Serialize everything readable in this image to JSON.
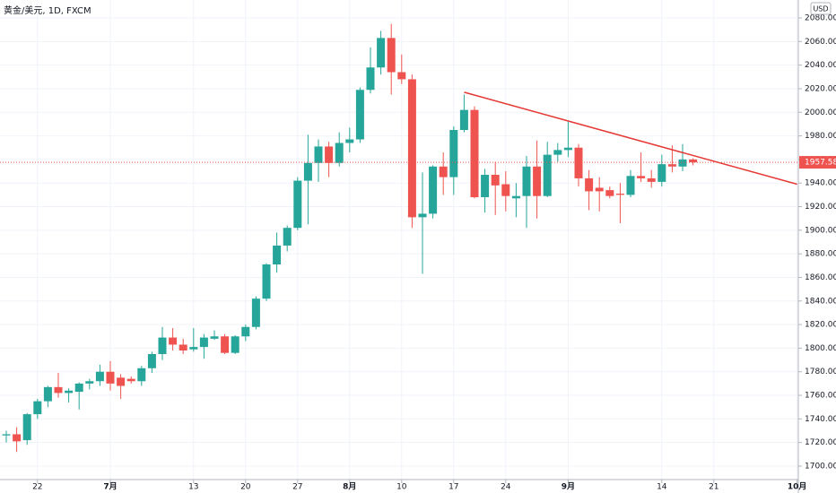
{
  "chart_data": {
    "type": "candlestick",
    "title": "黄金/美元, 1D, FXCM",
    "currency": "USD",
    "categories": [
      null,
      null,
      null,
      "22",
      null,
      null,
      null,
      null,
      null,
      null,
      "7月",
      null,
      null,
      null,
      null,
      null,
      null,
      null,
      "13",
      null,
      null,
      null,
      null,
      "20",
      null,
      null,
      null,
      null,
      "27",
      null,
      null,
      null,
      null,
      "8月",
      null,
      null,
      null,
      null,
      "10",
      null,
      null,
      null,
      null,
      "17",
      null,
      null,
      null,
      null,
      "24",
      null,
      null,
      null,
      null,
      null,
      "9月",
      null,
      null,
      null,
      null,
      null,
      null,
      null,
      null,
      "14",
      null,
      null,
      null,
      null,
      "21",
      null,
      null,
      null,
      null,
      null,
      null,
      null,
      "10月"
    ],
    "open": [
      1726,
      1727,
      1722,
      1744,
      1755,
      1767,
      1762,
      1763,
      1770,
      1772,
      1780,
      1775,
      1774,
      1772,
      1783,
      1795,
      1809,
      1803,
      1799,
      1801,
      1808,
      1810,
      1796,
      1810,
      1818,
      1842,
      1871,
      1887,
      1902,
      1942,
      1957,
      1971,
      1957,
      1974,
      1977,
      2019,
      2038,
      2063,
      2034,
      2028,
      1911,
      1914,
      1954,
      1945,
      1985,
      2002,
      1928,
      1947,
      1939,
      1927,
      1929,
      1954,
      1929,
      1964,
      1968,
      1970,
      1944,
      1936,
      1934,
      1931,
      1930,
      1946,
      1944,
      1941,
      1956,
      1954,
      1960,
      null,
      null,
      null,
      null,
      null,
      null,
      null,
      null,
      null,
      null
    ],
    "high": [
      1730,
      1733,
      1745,
      1757,
      1768,
      1779,
      1766,
      1771,
      1774,
      1786,
      1789,
      1778,
      1776,
      1785,
      1797,
      1818,
      1817,
      1808,
      1817,
      1812,
      1815,
      1812,
      1811,
      1820,
      1844,
      1872,
      1898,
      1904,
      1945,
      1981,
      1977,
      1975,
      1983,
      1987,
      2021,
      2055,
      2069,
      2075,
      2049,
      2032,
      1949,
      1955,
      1966,
      1988,
      2015,
      2005,
      1952,
      1958,
      1950,
      1940,
      1963,
      1976,
      1975,
      1974,
      1992,
      1973,
      1951,
      1945,
      1937,
      1940,
      1951,
      1966,
      1951,
      1964,
      1972,
      1973,
      1961,
      null,
      null,
      null,
      null,
      null,
      null,
      null,
      null,
      null,
      null
    ],
    "low": [
      1720,
      1712,
      1718,
      1740,
      1750,
      1758,
      1754,
      1748,
      1765,
      1768,
      1764,
      1757,
      1770,
      1768,
      1779,
      1790,
      1798,
      1795,
      1797,
      1791,
      1807,
      1795,
      1795,
      1806,
      1816,
      1840,
      1864,
      1882,
      1900,
      1905,
      1941,
      1945,
      1954,
      1966,
      1974,
      2016,
      2032,
      2015,
      2024,
      1902,
      1863,
      1910,
      1930,
      1930,
      1983,
      1927,
      1915,
      1913,
      1916,
      1911,
      1902,
      1910,
      1928,
      1958,
      1962,
      1937,
      1917,
      1916,
      1927,
      1906,
      1928,
      1941,
      1936,
      1937,
      1949,
      1950,
      1955,
      null,
      null,
      null,
      null,
      null,
      null,
      null,
      null,
      null,
      null
    ],
    "close": [
      1727,
      1721,
      1744,
      1755,
      1767,
      1762,
      1764,
      1770,
      1772,
      1780,
      1770,
      1768,
      1772,
      1783,
      1795,
      1809,
      1803,
      1798,
      1801,
      1809,
      1810,
      1796,
      1810,
      1818,
      1842,
      1871,
      1887,
      1902,
      1942,
      1957,
      1971,
      1957,
      1974,
      1977,
      2019,
      2038,
      2063,
      2034,
      2028,
      1911,
      1914,
      1954,
      1945,
      1985,
      2002,
      1928,
      1947,
      1938,
      1929,
      1929,
      1954,
      1929,
      1964,
      1968,
      1970,
      1944,
      1933,
      1933,
      1929,
      1930,
      1946,
      1944,
      1941,
      1956,
      1954,
      1960,
      1957.58,
      null,
      null,
      null,
      null,
      null,
      null,
      null,
      null,
      null,
      null
    ],
    "up_color": "#26a69a",
    "down_color": "#ef5350",
    "last_price": 1957.58,
    "trendline": {
      "color": "#e53935",
      "start": [
        44,
        2017
      ],
      "end": [
        76,
        1939
      ]
    },
    "ylim": [
      1688.6,
      2095.2
    ],
    "yticks": [
      {
        "value": 1700,
        "label": "1700.00"
      },
      {
        "value": 1720,
        "label": "1720.00"
      },
      {
        "value": 1740,
        "label": "1740.00"
      },
      {
        "value": 1760,
        "label": "1760.00"
      },
      {
        "value": 1780,
        "label": "1780.00"
      },
      {
        "value": 1800,
        "label": "1800.00"
      },
      {
        "value": 1820,
        "label": "1820.00"
      },
      {
        "value": 1840,
        "label": "1840.00"
      },
      {
        "value": 1860,
        "label": "1860.00"
      },
      {
        "value": 1880,
        "label": "1880.00"
      },
      {
        "value": 1900,
        "label": "1900.00"
      },
      {
        "value": 1920,
        "label": "1920.00"
      },
      {
        "value": 1940,
        "label": "1940.00"
      },
      {
        "value": 1960,
        "label": "1960.00"
      },
      {
        "value": 1980,
        "label": "1980.00"
      },
      {
        "value": 2000,
        "label": "2000.00"
      },
      {
        "value": 2020,
        "label": "2020.00"
      },
      {
        "value": 2040,
        "label": "2040.00"
      },
      {
        "value": 2060,
        "label": "2060.00"
      },
      {
        "value": 2080,
        "label": "2080.00"
      }
    ],
    "grid": true
  }
}
